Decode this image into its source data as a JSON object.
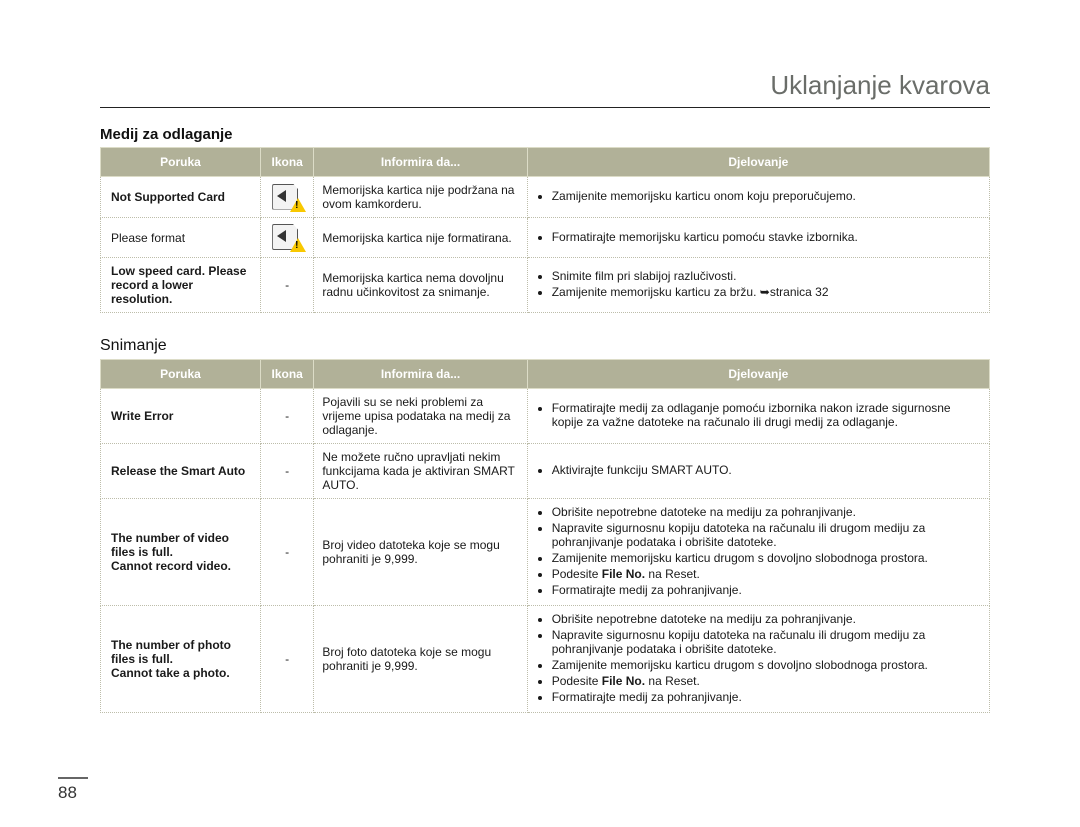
{
  "page_title": "Uklanjanje kvarova",
  "page_number": "88",
  "sections": [
    {
      "title": "Medij za odlaganje",
      "title_bold": true,
      "columns": [
        "Poruka",
        "Ikona",
        "Informira da...",
        "Djelovanje"
      ],
      "rows": [
        {
          "poruka": "Not Supported Card",
          "poruka_bold": true,
          "icon": "card-warn",
          "info": "Memorijska kartica nije podržana na ovom kamkorderu.",
          "actions": [
            "Zamijenite memorijsku karticu onom koju preporučujemo."
          ]
        },
        {
          "poruka": "Please format",
          "poruka_bold": false,
          "icon": "card-warn",
          "info": "Memorijska kartica nije formatirana.",
          "actions": [
            "Formatirajte memorijsku karticu pomoću stavke izbornika."
          ]
        },
        {
          "poruka": "Low speed card. Please record a lower resolution.",
          "poruka_bold": true,
          "icon": "-",
          "info": "Memorijska kartica nema dovoljnu radnu učinkovitost za snimanje.",
          "actions": [
            "Snimite film pri slabijoj razlučivosti.",
            "Zamijenite memorijsku karticu za bržu. ➥stranica 32"
          ]
        }
      ]
    },
    {
      "title": "Snimanje",
      "title_bold": false,
      "columns": [
        "Poruka",
        "Ikona",
        "Informira da...",
        "Djelovanje"
      ],
      "rows": [
        {
          "poruka": "Write Error",
          "poruka_bold": true,
          "icon": "-",
          "info": "Pojavili su se neki problemi za vrijeme upisa podataka na medij za odlaganje.",
          "actions": [
            "Formatirajte medij za odlaganje pomoću izbornika nakon izrade sigurnosne kopije za važne datoteke na računalo ili drugi medij za odlaganje."
          ]
        },
        {
          "poruka": "Release the Smart Auto",
          "poruka_bold": true,
          "icon": "-",
          "info": "Ne možete ručno upravljati nekim funkcijama kada je aktiviran SMART AUTO.",
          "actions": [
            "Aktivirajte funkciju SMART AUTO."
          ]
        },
        {
          "poruka": "The number of video files is full.\nCannot record video.",
          "poruka_bold": true,
          "icon": "-",
          "info": "Broj video datoteka koje se mogu pohraniti je 9,999.",
          "actions": [
            "Obrišite nepotrebne datoteke na mediju za pohranjivanje.",
            "Napravite sigurnosnu kopiju datoteka na računalu ili drugom mediju za pohranjivanje podataka i obrišite datoteke.",
            "Zamijenite memorijsku karticu drugom s dovoljno slobodnoga prostora.",
            "Podesite <b>File No.</b> na Reset.",
            "Formatirajte medij za pohranjivanje."
          ]
        },
        {
          "poruka": "The number of photo files is full.\nCannot take a photo.",
          "poruka_bold": true,
          "icon": "-",
          "info": "Broj foto datoteka koje se mogu pohraniti je 9,999.",
          "actions": [
            "Obrišite nepotrebne datoteke na mediju za pohranjivanje.",
            "Napravite sigurnosnu kopiju datoteka na računalu ili drugom mediju za pohranjivanje podataka i obrišite datoteke.",
            "Zamijenite memorijsku karticu drugom s dovoljno slobodnoga prostora.",
            "Podesite <b>File No.</b> na Reset.",
            "Formatirajte medij za pohranjivanje."
          ]
        }
      ]
    }
  ]
}
